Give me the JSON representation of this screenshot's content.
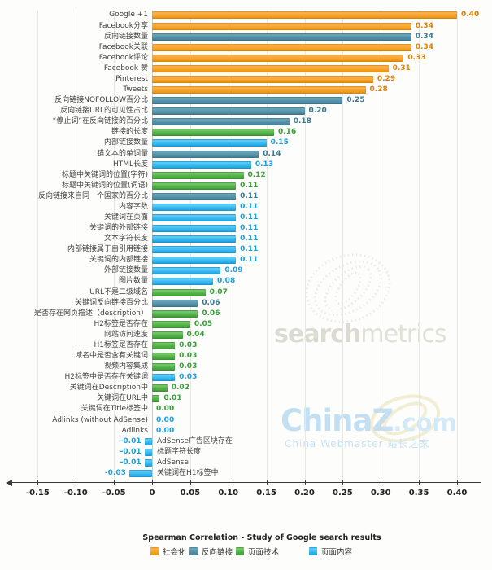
{
  "chart_data": {
    "type": "bar",
    "orientation": "horizontal",
    "xlabel": "Spearman Correlation - Study of Google search results",
    "xlim": [
      -0.17,
      0.43
    ],
    "grid": true,
    "legend_position": "bottom",
    "xticks": [
      {
        "value": -0.15,
        "label": "-0.15"
      },
      {
        "value": -0.1,
        "label": "-0.10"
      },
      {
        "value": -0.05,
        "label": "-0.05"
      },
      {
        "value": 0,
        "label": "0"
      },
      {
        "value": 0.05,
        "label": "0.05"
      },
      {
        "value": 0.1,
        "label": "0.10"
      },
      {
        "value": 0.15,
        "label": "0.15"
      },
      {
        "value": 0.2,
        "label": "0.20"
      },
      {
        "value": 0.25,
        "label": "0.25"
      },
      {
        "value": 0.3,
        "label": "0.30"
      },
      {
        "value": 0.35,
        "label": "0.35"
      },
      {
        "value": 0.4,
        "label": "0.40"
      }
    ],
    "legend": [
      {
        "key": "social",
        "label": "社会化",
        "color": "#f5a11f"
      },
      {
        "key": "backlink",
        "label": "反向链接",
        "color": "#5591a8"
      },
      {
        "key": "tech",
        "label": "页面技术",
        "color": "#52b247"
      },
      {
        "key": "content",
        "label": "页面内容",
        "color": "#38b9f1"
      }
    ],
    "items": [
      {
        "label": "Google +1",
        "value": 0.4,
        "group": "social"
      },
      {
        "label": "Facebook分享",
        "value": 0.34,
        "group": "social"
      },
      {
        "label": "反向链接数量",
        "value": 0.34,
        "group": "backlink"
      },
      {
        "label": "Facebook关联",
        "value": 0.34,
        "group": "social"
      },
      {
        "label": "Facebook评论",
        "value": 0.33,
        "group": "social"
      },
      {
        "label": "Facebook 赞",
        "value": 0.31,
        "group": "social"
      },
      {
        "label": "Pinterest",
        "value": 0.29,
        "group": "social"
      },
      {
        "label": "Tweets",
        "value": 0.28,
        "group": "social"
      },
      {
        "label": "反向链接NOFOLLOW百分比",
        "value": 0.25,
        "group": "backlink"
      },
      {
        "label": "反向链接URL的可见性占比",
        "value": 0.2,
        "group": "backlink"
      },
      {
        "label": "“停止词”在反向链接的百分比",
        "value": 0.18,
        "group": "backlink"
      },
      {
        "label": "链接的长度",
        "value": 0.16,
        "group": "tech"
      },
      {
        "label": "内部链接数量",
        "value": 0.15,
        "group": "content"
      },
      {
        "label": "锚文本的单词量",
        "value": 0.14,
        "group": "backlink"
      },
      {
        "label": "HTML长度",
        "value": 0.13,
        "group": "content"
      },
      {
        "label": "标题中关键词的位置(字符)",
        "value": 0.12,
        "group": "tech"
      },
      {
        "label": "标题中关键词的位置(词语)",
        "value": 0.11,
        "group": "tech"
      },
      {
        "label": "反向链接来自同一个国家的百分比",
        "value": 0.11,
        "group": "backlink"
      },
      {
        "label": "内容字数",
        "value": 0.11,
        "group": "content"
      },
      {
        "label": "关键词在页面",
        "value": 0.11,
        "group": "content"
      },
      {
        "label": "关键词的外部链接",
        "value": 0.11,
        "group": "content"
      },
      {
        "label": "文本字符长度",
        "value": 0.11,
        "group": "content"
      },
      {
        "label": "内部链接属于自引用链接",
        "value": 0.11,
        "group": "content"
      },
      {
        "label": "关键词的内部链接",
        "value": 0.11,
        "group": "content"
      },
      {
        "label": "外部链接数量",
        "value": 0.09,
        "group": "content"
      },
      {
        "label": "图片数量",
        "value": 0.08,
        "group": "content"
      },
      {
        "label": "URL不是二级域名",
        "value": 0.07,
        "group": "tech"
      },
      {
        "label": "关键词反向链接百分比",
        "value": 0.06,
        "group": "backlink"
      },
      {
        "label": "是否存在网页描述（description）",
        "value": 0.06,
        "group": "tech"
      },
      {
        "label": "H2标签是否存在",
        "value": 0.05,
        "group": "tech"
      },
      {
        "label": "网站访问速度",
        "value": 0.04,
        "group": "tech"
      },
      {
        "label": "H1标签是否存在",
        "value": 0.03,
        "group": "tech"
      },
      {
        "label": "域名中是否含有关键词",
        "value": 0.03,
        "group": "tech"
      },
      {
        "label": "视频内容集成",
        "value": 0.03,
        "group": "tech"
      },
      {
        "label": "H2标签中是否存在关键词",
        "value": 0.03,
        "group": "content"
      },
      {
        "label": "关键词在Description中",
        "value": 0.02,
        "group": "tech"
      },
      {
        "label": "关键词在URL中",
        "value": 0.01,
        "group": "tech"
      },
      {
        "label": "关键词在Title标签中",
        "value": 0.0,
        "group": "tech"
      },
      {
        "label": "Adlinks (without AdSense)",
        "value": 0.0,
        "group": "content"
      },
      {
        "label": "Adlinks",
        "value": 0.0,
        "group": "content"
      },
      {
        "label": "AdSense广告区块存在",
        "value": -0.01,
        "group": "content"
      },
      {
        "label": "标题字符长度",
        "value": -0.01,
        "group": "content"
      },
      {
        "label": "AdSense",
        "value": -0.01,
        "group": "content"
      },
      {
        "label": "关键词在H1标签中",
        "value": -0.03,
        "group": "content"
      }
    ]
  },
  "watermarks": {
    "searchmetrics": {
      "part1": "search",
      "part2": "metrics"
    },
    "chinaz": {
      "brand": "ChinaZ",
      "dotcom": ".com",
      "subtitle": "China Webmaster 站长之家"
    }
  }
}
